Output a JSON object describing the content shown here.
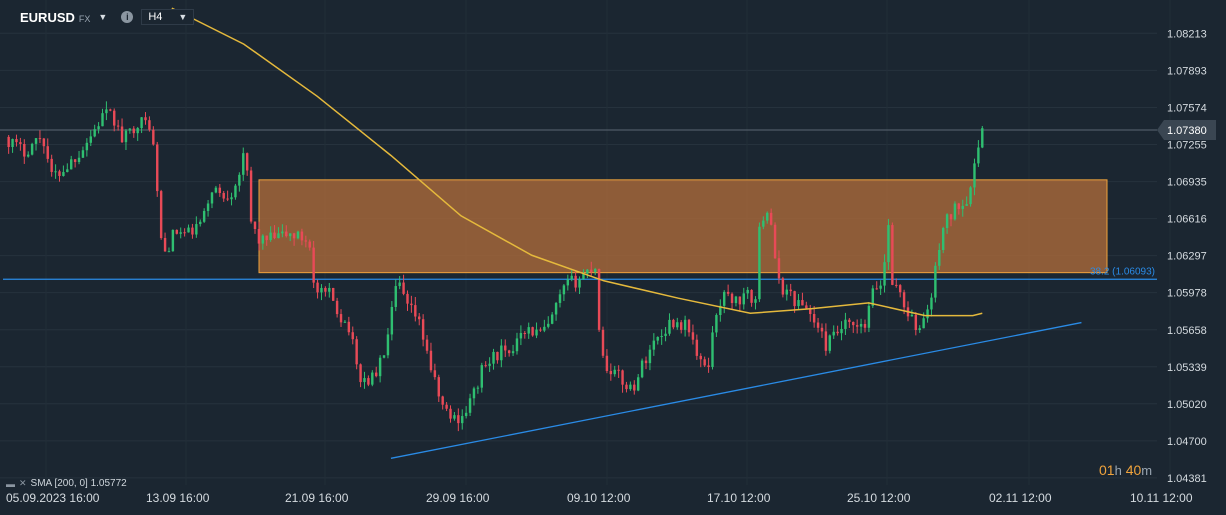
{
  "toolbar": {
    "symbol": "EURUSD",
    "symbol_type": "FX",
    "timeframe": "H4",
    "info_icon": "info-icon",
    "dropdown_icon": "chevron-down-icon"
  },
  "indicator_legend": {
    "text": "SMA [200, 0] 1.05772",
    "icons": [
      "eye-icon",
      "close-icon"
    ]
  },
  "countdown": {
    "hours": "01",
    "h_unit": "h",
    "minutes": "40",
    "m_unit": "m"
  },
  "colors": {
    "background": "#1b2631",
    "up_candle": "#2fbf71",
    "down_candle": "#e84a57",
    "sma": "#e5b93c",
    "fib_line": "#2a8be6",
    "trendline": "#2a8be6",
    "zone_fill": "#a8693a",
    "zone_border": "#f0a33c",
    "price_label_bg": "#3a4652"
  },
  "chart_data": {
    "type": "candlestick",
    "instrument": "EURUSD",
    "timeframe": "H4",
    "x_ticks": [
      "05.09.2023  16:00",
      "13.09  16:00",
      "21.09  16:00",
      "29.09  16:00",
      "09.10  12:00",
      "17.10  12:00",
      "25.10  12:00",
      "02.11  12:00",
      "10.11  12:00"
    ],
    "y_ticks": [
      "1.08213",
      "1.07893",
      "1.07574",
      "1.07255",
      "1.06935",
      "1.06616",
      "1.06297",
      "1.05978",
      "1.05658",
      "1.05339",
      "1.05020",
      "1.04700",
      "1.04381"
    ],
    "ylim": [
      1.0432,
      1.085
    ],
    "current_price": "1.07380",
    "fib_level": {
      "label": "38.2 (1.06093)",
      "value": 1.06093
    },
    "resistance_zone": {
      "low": 1.0615,
      "high": 1.0695
    },
    "trendline": [
      [
        1.0455,
        0.3379
      ],
      [
        1.0572,
        0.9347
      ]
    ],
    "sma": {
      "name": "SMA [200, 0]",
      "value": 1.05772,
      "points": [
        [
          0.1485,
          1.0843
        ],
        [
          0.2107,
          1.0812
        ],
        [
          0.2742,
          1.0767
        ],
        [
          0.3379,
          1.0716
        ],
        [
          0.3984,
          1.0664
        ],
        [
          0.4596,
          1.063
        ],
        [
          0.5219,
          1.0608
        ],
        [
          0.5863,
          1.0593
        ],
        [
          0.6485,
          1.058
        ],
        [
          0.7019,
          1.0584
        ],
        [
          0.7508,
          1.0589
        ],
        [
          0.7996,
          1.0578
        ],
        [
          0.8408,
          1.0578
        ],
        [
          0.849,
          1.058
        ]
      ]
    },
    "anchors": [
      [
        0.0041,
        1.0732
      ],
      [
        0.0204,
        1.0719
      ],
      [
        0.0367,
        1.0734
      ],
      [
        0.0449,
        1.0697
      ],
      [
        0.0571,
        1.0706
      ],
      [
        0.0694,
        1.072
      ],
      [
        0.0816,
        1.0738
      ],
      [
        0.0898,
        1.0752
      ],
      [
        0.098,
        1.0748
      ],
      [
        0.1061,
        1.0728
      ],
      [
        0.1184,
        1.0745
      ],
      [
        0.1306,
        1.0743
      ],
      [
        0.1347,
        1.07
      ],
      [
        0.1388,
        1.0645
      ],
      [
        0.1429,
        1.0632
      ],
      [
        0.151,
        1.065
      ],
      [
        0.1633,
        1.0648
      ],
      [
        0.1755,
        1.066
      ],
      [
        0.1837,
        1.069
      ],
      [
        0.1918,
        1.068
      ],
      [
        0.2,
        1.0685
      ],
      [
        0.2082,
        1.0705
      ],
      [
        0.2122,
        1.072
      ],
      [
        0.2163,
        1.066
      ],
      [
        0.2245,
        1.0642
      ],
      [
        0.2367,
        1.0645
      ],
      [
        0.249,
        1.0648
      ],
      [
        0.2612,
        1.0645
      ],
      [
        0.2694,
        1.064
      ],
      [
        0.2714,
        1.0598
      ],
      [
        0.2776,
        1.0596
      ],
      [
        0.2857,
        1.0596
      ],
      [
        0.2939,
        1.0578
      ],
      [
        0.302,
        1.0568
      ],
      [
        0.3061,
        1.0545
      ],
      [
        0.3102,
        1.0525
      ],
      [
        0.3184,
        1.0522
      ],
      [
        0.3265,
        1.053
      ],
      [
        0.3347,
        1.0556
      ],
      [
        0.3429,
        1.0605
      ],
      [
        0.3469,
        1.0601
      ],
      [
        0.351,
        1.0585
      ],
      [
        0.3592,
        1.0578
      ],
      [
        0.3673,
        1.0556
      ],
      [
        0.3755,
        1.052
      ],
      [
        0.3837,
        1.0497
      ],
      [
        0.3918,
        1.0489
      ],
      [
        0.4,
        1.0492
      ],
      [
        0.4082,
        1.0507
      ],
      [
        0.4163,
        1.053
      ],
      [
        0.4245,
        1.054
      ],
      [
        0.4327,
        1.0548
      ],
      [
        0.4408,
        1.054
      ],
      [
        0.449,
        1.0568
      ],
      [
        0.4571,
        1.0566
      ],
      [
        0.4653,
        1.0562
      ],
      [
        0.4735,
        1.0567
      ],
      [
        0.4816,
        1.0587
      ],
      [
        0.4898,
        1.0605
      ],
      [
        0.498,
        1.0608
      ],
      [
        0.5061,
        1.0615
      ],
      [
        0.5143,
        1.0622
      ],
      [
        0.5184,
        1.056
      ],
      [
        0.5224,
        1.0535
      ],
      [
        0.5306,
        1.053
      ],
      [
        0.5388,
        1.052
      ],
      [
        0.5469,
        1.0515
      ],
      [
        0.5551,
        1.0535
      ],
      [
        0.5633,
        1.0553
      ],
      [
        0.5714,
        1.0562
      ],
      [
        0.5796,
        1.0573
      ],
      [
        0.5878,
        1.0571
      ],
      [
        0.5959,
        1.0568
      ],
      [
        0.6041,
        1.0535
      ],
      [
        0.6122,
        1.0537
      ],
      [
        0.6204,
        1.0589
      ],
      [
        0.6286,
        1.0596
      ],
      [
        0.6367,
        1.059
      ],
      [
        0.6449,
        1.0595
      ],
      [
        0.6531,
        1.0592
      ],
      [
        0.6571,
        1.0662
      ],
      [
        0.6612,
        1.0667
      ],
      [
        0.6653,
        1.0673
      ],
      [
        0.6694,
        1.0625
      ],
      [
        0.6735,
        1.0604
      ],
      [
        0.6816,
        1.0598
      ],
      [
        0.6898,
        1.0588
      ],
      [
        0.698,
        1.0585
      ],
      [
        0.7061,
        1.0568
      ],
      [
        0.7143,
        1.0552
      ],
      [
        0.7224,
        1.0562
      ],
      [
        0.7306,
        1.0569
      ],
      [
        0.7388,
        1.0567
      ],
      [
        0.7469,
        1.0566
      ],
      [
        0.7551,
        1.06
      ],
      [
        0.7633,
        1.0607
      ],
      [
        0.7673,
        1.0665
      ],
      [
        0.7714,
        1.0607
      ],
      [
        0.7755,
        1.06
      ],
      [
        0.7796,
        1.0595
      ],
      [
        0.7837,
        1.058
      ],
      [
        0.7878,
        1.0577
      ],
      [
        0.7918,
        1.056
      ],
      [
        0.7959,
        1.0572
      ],
      [
        0.8041,
        1.0588
      ],
      [
        0.8122,
        1.0641
      ],
      [
        0.8163,
        1.066
      ],
      [
        0.8204,
        1.0661
      ],
      [
        0.8245,
        1.0668
      ],
      [
        0.8286,
        1.0675
      ],
      [
        0.8327,
        1.0675
      ],
      [
        0.8367,
        1.0682
      ],
      [
        0.8408,
        1.0705
      ],
      [
        0.8449,
        1.0712
      ],
      [
        0.849,
        1.0742
      ]
    ]
  }
}
